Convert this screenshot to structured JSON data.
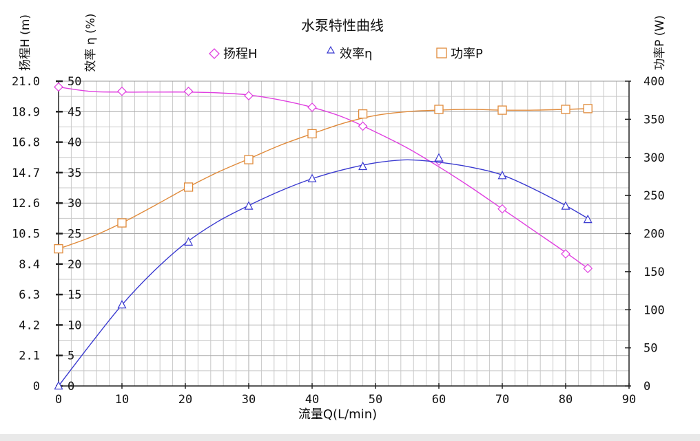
{
  "chart_data": {
    "type": "line",
    "title": "水泵特性曲线",
    "xlabel": "流量Q(L/min)",
    "ylabel_left_H": "扬程H (m)",
    "ylabel_left_eff": "效率 η (%)",
    "ylabel_right": "功率P (W)",
    "x_ticks": [
      "0",
      "10",
      "20",
      "30",
      "40",
      "50",
      "60",
      "70",
      "80",
      "90"
    ],
    "y_ticks_H": [
      "0",
      "2.1",
      "4.2",
      "6.3",
      "8.4",
      "10.5",
      "12.6",
      "14.7",
      "16.8",
      "18.9",
      "21.0"
    ],
    "y_ticks_eff": [
      "0",
      "5",
      "10",
      "15",
      "20",
      "25",
      "30",
      "35",
      "40",
      "45",
      "50"
    ],
    "y_ticks_P": [
      "0",
      "50",
      "100",
      "150",
      "200",
      "250",
      "300",
      "350",
      "400"
    ],
    "xlim": [
      0,
      90
    ],
    "ylim_H": [
      0,
      21
    ],
    "ylim_eff": [
      0,
      50
    ],
    "ylim_P": [
      0,
      400
    ],
    "grid": true,
    "legend_position": "top-center",
    "series": [
      {
        "name": "扬程H",
        "axis": "H",
        "marker": "diamond",
        "color": "#e040e0",
        "x": [
          0,
          10,
          20.5,
          30,
          40,
          48,
          60,
          70,
          80,
          83.5
        ],
        "y": [
          20.6,
          20.3,
          20.3,
          20.0,
          19.2,
          17.9,
          15.5,
          12.2,
          9.1,
          8.1
        ],
        "curve_x": [
          0,
          5,
          10,
          15,
          20,
          25,
          30,
          35,
          40,
          45,
          50,
          55,
          60,
          65,
          70,
          75,
          80,
          83.5
        ],
        "curve_y": [
          20.6,
          20.3,
          20.25,
          20.25,
          20.25,
          20.2,
          20.05,
          19.7,
          19.2,
          18.5,
          17.5,
          16.4,
          15.1,
          13.7,
          12.2,
          10.7,
          9.2,
          8.1
        ]
      },
      {
        "name": "效率η",
        "axis": "eff",
        "marker": "triangle",
        "color": "#3a3ad0",
        "x": [
          0,
          10,
          20.5,
          30,
          40,
          48,
          60,
          70,
          80,
          83.5
        ],
        "y": [
          0,
          13.3,
          23.6,
          29.5,
          34.0,
          36.0,
          37.4,
          34.5,
          29.5,
          27.3
        ],
        "curve_x": [
          0,
          5,
          10,
          15,
          20,
          25,
          30,
          35,
          40,
          45,
          50,
          55,
          60,
          65,
          70,
          75,
          80,
          83.5
        ],
        "curve_y": [
          0,
          6.8,
          13.3,
          18.8,
          23.4,
          26.9,
          29.6,
          32.0,
          34.0,
          35.5,
          36.6,
          37.1,
          36.7,
          35.9,
          34.6,
          32.3,
          29.6,
          27.5
        ]
      },
      {
        "name": "功率P",
        "axis": "P",
        "marker": "square",
        "color": "#e08a3a",
        "x": [
          0,
          10,
          20.5,
          30,
          40,
          48,
          60,
          70,
          80,
          83.5
        ],
        "y": [
          180,
          214,
          261,
          297,
          331,
          357,
          363,
          362,
          363,
          364
        ],
        "curve_x": [
          0,
          5,
          10,
          15,
          20,
          25,
          30,
          35,
          40,
          45,
          50,
          55,
          60,
          65,
          70,
          75,
          80,
          83.5
        ],
        "curve_y": [
          180,
          195,
          214,
          236,
          259,
          280,
          298,
          316,
          331,
          345,
          355,
          360,
          362,
          363,
          362,
          362,
          363,
          364
        ]
      }
    ]
  },
  "colors": {
    "grid": "#c8c8c8",
    "axis": "#222222",
    "background": "#ffffff"
  }
}
